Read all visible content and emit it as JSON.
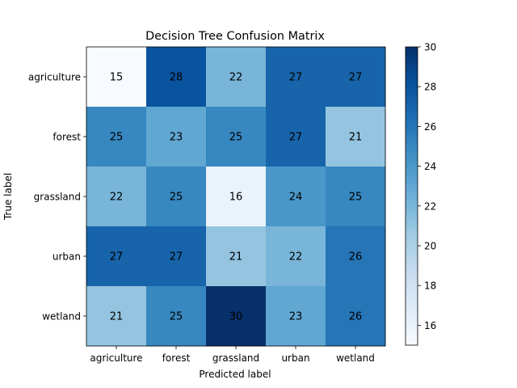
{
  "chart_data": {
    "type": "heatmap",
    "title": "Decision Tree Confusion Matrix",
    "xlabel": "Predicted label",
    "ylabel": "True label",
    "x_categories": [
      "agriculture",
      "forest",
      "grassland",
      "urban",
      "wetland"
    ],
    "y_categories": [
      "agriculture",
      "forest",
      "grassland",
      "urban",
      "wetland"
    ],
    "values": [
      [
        15,
        28,
        22,
        27,
        27
      ],
      [
        25,
        23,
        25,
        27,
        21
      ],
      [
        22,
        25,
        16,
        24,
        25
      ],
      [
        27,
        27,
        21,
        22,
        26
      ],
      [
        21,
        25,
        30,
        23,
        26
      ]
    ],
    "colormap": "Blues",
    "color_range": [
      15,
      30
    ],
    "colorbar_ticks": [
      16,
      18,
      20,
      22,
      24,
      26,
      28,
      30
    ]
  }
}
